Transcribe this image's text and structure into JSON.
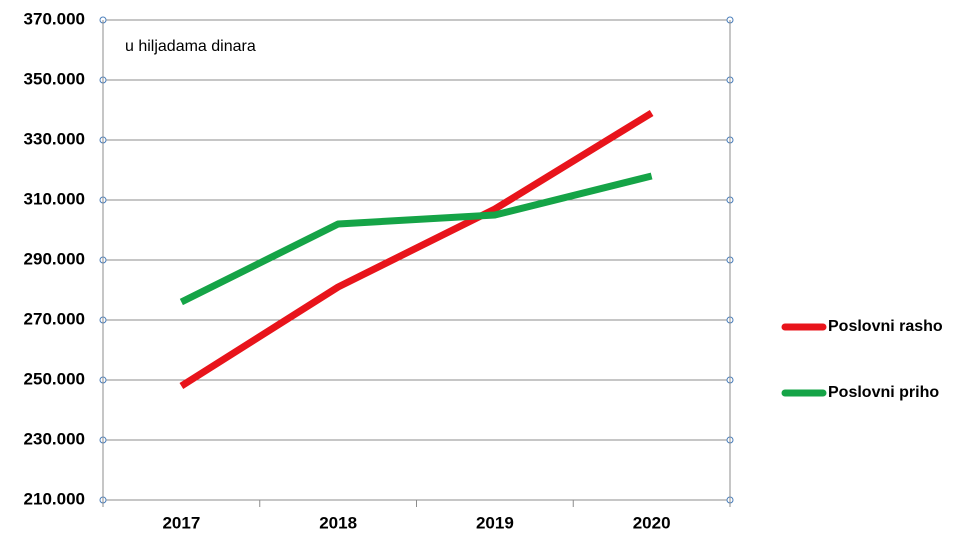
{
  "chart_data": {
    "type": "line",
    "annotation": "u hiljadama dinara",
    "categories": [
      "2017",
      "2018",
      "2019",
      "2020"
    ],
    "series": [
      {
        "name": "Poslovni rasho",
        "color": "#e8141b",
        "values": [
          248000,
          281000,
          307000,
          339000
        ]
      },
      {
        "name": "Poslovni priho",
        "color": "#15a447",
        "values": [
          276000,
          302000,
          305000,
          318000
        ]
      }
    ],
    "ylim": [
      210000,
      370000
    ],
    "yticks": [
      {
        "value": 210000,
        "label": "210.000"
      },
      {
        "value": 230000,
        "label": "230.000"
      },
      {
        "value": 250000,
        "label": "250.000"
      },
      {
        "value": 270000,
        "label": "270.000"
      },
      {
        "value": 290000,
        "label": "290.000"
      },
      {
        "value": 310000,
        "label": "310.000"
      },
      {
        "value": 330000,
        "label": "330.000"
      },
      {
        "value": 350000,
        "label": "350.000"
      },
      {
        "value": 370000,
        "label": "370.000"
      }
    ],
    "grid": true
  }
}
